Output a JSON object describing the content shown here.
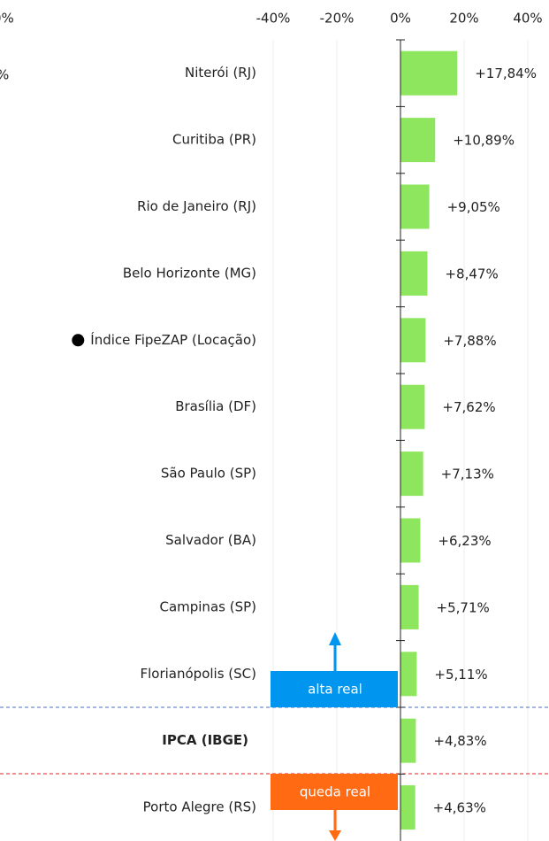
{
  "chart_data": {
    "type": "hbar",
    "categories": [
      "Niterói (RJ)",
      "Curitiba (PR)",
      "Rio de Janeiro (RJ)",
      "Belo Horizonte (MG)",
      "Índice FipeZAP (Locação)",
      "Brasília (DF)",
      "São Paulo (SP)",
      "Salvador (BA)",
      "Campinas (SP)",
      "Florianópolis (SC)",
      "IPCA (IBGE)",
      "Porto Alegre (RS)"
    ],
    "values": [
      17.84,
      10.89,
      9.05,
      8.47,
      7.88,
      7.62,
      7.13,
      6.23,
      5.71,
      5.11,
      4.83,
      4.63
    ],
    "value_labels": [
      "+17,84%",
      "+10,89%",
      "+9,05%",
      "+8,47%",
      "+7,88%",
      "+7,62%",
      "+7,13%",
      "+6,23%",
      "+5,71%",
      "+5,11%",
      "+4,83%",
      "+4,63%"
    ],
    "color": "#8ee65f",
    "bold_category": 10,
    "dot_category": 4,
    "xlim": [
      -45,
      45
    ],
    "xticks": [
      {
        "value": -40,
        "label": "-40%"
      },
      {
        "value": -20,
        "label": "-20%"
      },
      {
        "value": 0,
        "label": "0%"
      },
      {
        "value": 20,
        "label": "20%"
      },
      {
        "value": 40,
        "label": "40%"
      }
    ],
    "annotations": [
      {
        "text": "alta real",
        "color": "#0096f0"
      },
      {
        "text": "queda real",
        "color": "#ff6a13"
      }
    ],
    "cropped_texts": [
      "0%",
      "%"
    ]
  }
}
